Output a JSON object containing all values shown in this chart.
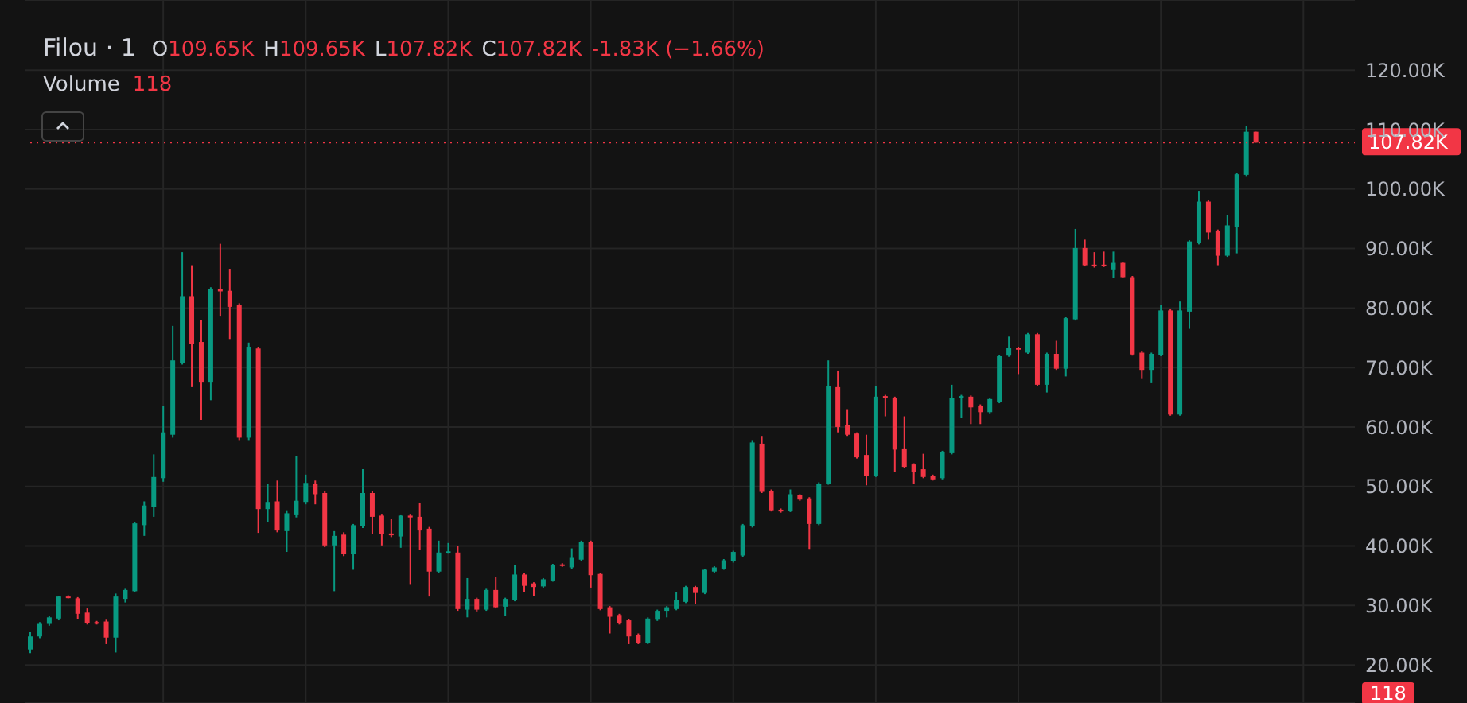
{
  "chart_data": {
    "type": "candlestick",
    "title": "Filou · 1",
    "annotations": [
      "O",
      "109.65K",
      "H",
      "109.65K",
      "L",
      "107.82K",
      "C",
      "107.82K",
      "-1.83K (−1.66%)",
      "Volume",
      "118",
      "118"
    ],
    "categories": [
      null,
      null,
      null,
      null,
      null,
      null,
      null,
      null,
      null,
      null,
      null,
      null,
      null,
      null,
      null,
      null,
      null,
      null,
      null,
      null,
      null,
      null,
      null,
      null,
      null,
      null,
      null,
      null,
      null,
      null,
      null,
      null,
      null,
      null,
      null,
      null,
      null,
      null,
      null,
      null,
      null,
      null,
      null,
      null,
      null,
      null,
      null,
      null,
      null,
      null,
      null,
      null,
      null,
      null,
      null,
      null,
      null,
      null,
      null,
      null,
      null,
      null,
      null,
      null,
      null,
      null,
      null,
      null,
      null,
      null,
      null,
      null,
      null,
      null,
      null,
      null,
      null,
      null,
      null,
      null,
      null,
      null,
      null,
      null,
      null,
      null,
      null,
      null,
      null,
      null,
      null,
      null,
      null,
      null,
      null,
      null,
      null,
      null,
      null,
      null,
      null,
      null,
      null,
      null,
      null,
      null,
      null,
      null,
      null,
      null,
      null,
      null,
      null,
      null,
      null,
      null,
      null,
      null,
      null,
      null,
      null,
      null,
      null,
      null,
      null,
      null,
      null,
      null,
      null,
      null,
      null,
      null,
      null,
      null,
      null,
      null,
      null,
      null,
      null,
      null
    ],
    "colors": [
      "#089981",
      "#089981",
      "#089981",
      "#089981",
      "#f23645",
      "#f23645",
      "#f23645",
      "#f23645",
      "#f23645",
      "#089981",
      "#089981",
      "#089981",
      "#089981",
      "#089981",
      "#089981",
      "#089981",
      "#089981",
      "#f23645",
      "#f23645",
      "#089981",
      "#f23645",
      "#f23645",
      "#f23645",
      "#089981",
      "#f23645",
      "#089981",
      "#f23645",
      "#089981",
      "#089981",
      "#089981",
      "#f23645",
      "#f23645",
      "#089981",
      "#f23645",
      "#089981",
      "#089981",
      "#f23645",
      "#f23645",
      "#f23645",
      "#089981",
      "#f23645",
      "#f23645",
      "#f23645",
      "#089981",
      "#089981",
      "#f23645",
      "#089981",
      "#f23645",
      "#089981",
      "#f23645",
      "#089981",
      "#089981",
      "#f23645",
      "#f23645",
      "#089981",
      "#089981",
      "#f23645",
      "#089981",
      "#089981",
      "#f23645",
      "#f23645",
      "#f23645",
      "#f23645",
      "#f23645",
      "#f23645",
      "#089981",
      "#089981",
      "#089981",
      "#089981",
      "#089981",
      "#f23645",
      "#089981",
      "#089981",
      "#089981",
      "#089981",
      "#089981",
      "#089981",
      "#f23645",
      "#f23645",
      "#f23645",
      "#089981",
      "#f23645",
      "#f23645",
      "#089981",
      "#089981",
      "#f23645",
      "#f23645",
      "#f23645",
      "#f23645",
      "#089981",
      "#f23645",
      "#f23645",
      "#f23645",
      "#f23645",
      "#f23645",
      "#f23645",
      "#089981",
      "#089981",
      "#089981",
      "#f23645",
      "#f23645",
      "#089981",
      "#089981",
      "#089981",
      "#f23645",
      "#089981",
      "#f23645",
      "#089981",
      "#f23645",
      "#089981",
      "#089981",
      "#f23645",
      "#f23645",
      "#f23645",
      "#089981",
      "#f23645",
      "#f23645",
      "#f23645",
      "#089981",
      "#089981",
      "#f23645",
      "#089981",
      "#089981",
      "#089981",
      "#f23645",
      "#f23645",
      "#089981",
      "#089981",
      "#089981",
      "#f23645",
      null,
      null,
      null,
      null,
      null,
      null,
      null,
      null,
      null,
      null
    ],
    "ohlc": [
      [
        22600,
        25500,
        22000,
        24800
      ],
      [
        24800,
        27200,
        24500,
        26900
      ],
      [
        26900,
        28300,
        26600,
        28000
      ],
      [
        27800,
        31600,
        27500,
        31500
      ],
      [
        31500,
        31700,
        31200,
        31300
      ],
      [
        31200,
        31400,
        27700,
        28600
      ],
      [
        28800,
        29500,
        26800,
        27000
      ],
      [
        27200,
        27400,
        26800,
        27000
      ],
      [
        27300,
        27600,
        23500,
        24600
      ],
      [
        24600,
        32000,
        22100,
        31500
      ],
      [
        31100,
        32800,
        30500,
        32600
      ],
      [
        32400,
        44000,
        32200,
        43800
      ],
      [
        43500,
        47500,
        41700,
        46800
      ],
      [
        46500,
        55400,
        44900,
        51600
      ],
      [
        51400,
        63600,
        50800,
        59100
      ],
      [
        58700,
        77000,
        58200,
        71200
      ],
      [
        70800,
        89400,
        70500,
        82000
      ],
      [
        82000,
        87200,
        66700,
        74000
      ],
      [
        74300,
        78000,
        61200,
        67600
      ],
      [
        67600,
        83500,
        64500,
        83200
      ],
      [
        83200,
        90800,
        78700,
        82800
      ],
      [
        82900,
        86600,
        74800,
        80200
      ],
      [
        80500,
        80800,
        57800,
        58200
      ],
      [
        58200,
        74200,
        57800,
        73500
      ],
      [
        73200,
        73500,
        42200,
        46200
      ],
      [
        46200,
        50500,
        44000,
        47400
      ],
      [
        47500,
        51000,
        42300,
        42600
      ],
      [
        42500,
        46000,
        39000,
        45500
      ],
      [
        45300,
        55100,
        44800,
        47600
      ],
      [
        47400,
        52000,
        47000,
        50600
      ],
      [
        50500,
        51000,
        47000,
        48700
      ],
      [
        48900,
        49200,
        39800,
        40100
      ],
      [
        40100,
        42500,
        32400,
        41700
      ],
      [
        41900,
        42300,
        38300,
        38600
      ],
      [
        38600,
        43700,
        36000,
        43500
      ],
      [
        43300,
        52900,
        43000,
        48900
      ],
      [
        48900,
        49200,
        42000,
        44900
      ],
      [
        45100,
        45400,
        40100,
        42000
      ],
      [
        42100,
        44600,
        41500,
        41800
      ],
      [
        41600,
        45300,
        39700,
        45100
      ],
      [
        45100,
        45400,
        33600,
        44800
      ],
      [
        44900,
        47300,
        39300,
        42600
      ],
      [
        42900,
        43200,
        31500,
        35700
      ],
      [
        35700,
        40900,
        35400,
        38900
      ],
      [
        38900,
        40500,
        38700,
        39100
      ],
      [
        38900,
        40000,
        29100,
        29400
      ],
      [
        29300,
        34600,
        28000,
        31100
      ],
      [
        31100,
        31300,
        29000,
        29300
      ],
      [
        29300,
        32800,
        29100,
        32600
      ],
      [
        32600,
        34800,
        29500,
        29700
      ],
      [
        29800,
        31300,
        28200,
        31100
      ],
      [
        30900,
        36800,
        30700,
        35200
      ],
      [
        35200,
        35400,
        32200,
        33300
      ],
      [
        33700,
        33900,
        31600,
        33100
      ],
      [
        33200,
        34600,
        33000,
        34400
      ],
      [
        34200,
        37000,
        34000,
        36800
      ],
      [
        36900,
        37100,
        36500,
        36700
      ],
      [
        36400,
        39600,
        36200,
        38000
      ],
      [
        37700,
        40900,
        37500,
        40700
      ],
      [
        40700,
        40900,
        33000,
        35100
      ],
      [
        35300,
        35500,
        29200,
        29400
      ],
      [
        29700,
        29900,
        25300,
        28100
      ],
      [
        28400,
        28600,
        26800,
        27000
      ],
      [
        27500,
        27700,
        23500,
        24800
      ],
      [
        25100,
        25300,
        23500,
        23700
      ],
      [
        23700,
        28000,
        23500,
        27800
      ],
      [
        27600,
        29300,
        27400,
        29100
      ],
      [
        29100,
        29900,
        28000,
        29700
      ],
      [
        29400,
        32200,
        29200,
        30900
      ],
      [
        30600,
        33300,
        30400,
        33100
      ],
      [
        33100,
        33300,
        30300,
        32100
      ],
      [
        32100,
        36200,
        31900,
        36000
      ],
      [
        35700,
        36600,
        35500,
        36400
      ],
      [
        36200,
        37800,
        36000,
        37600
      ],
      [
        37400,
        39200,
        37200,
        39000
      ],
      [
        38400,
        43700,
        38200,
        43500
      ],
      [
        43300,
        57800,
        43100,
        57400
      ],
      [
        57200,
        58500,
        48900,
        49100
      ],
      [
        49300,
        49500,
        45800,
        46000
      ],
      [
        46100,
        46300,
        45600,
        45800
      ],
      [
        45900,
        49500,
        45700,
        48700
      ],
      [
        48500,
        48700,
        47600,
        47800
      ],
      [
        48000,
        48200,
        39500,
        43700
      ],
      [
        43700,
        50700,
        43500,
        50500
      ],
      [
        50500,
        71200,
        50300,
        66900
      ],
      [
        66700,
        69500,
        59100,
        60000
      ],
      [
        60300,
        63000,
        58500,
        58700
      ],
      [
        58900,
        59100,
        54700,
        54900
      ],
      [
        55300,
        58700,
        50200,
        51800
      ],
      [
        51800,
        66900,
        51600,
        65100
      ],
      [
        65200,
        65400,
        61800,
        64900
      ],
      [
        64900,
        65100,
        52400,
        56200
      ],
      [
        56400,
        61800,
        53100,
        53300
      ],
      [
        53700,
        53900,
        50500,
        52400
      ],
      [
        52900,
        55500,
        51400,
        51600
      ],
      [
        51800,
        52000,
        51000,
        51200
      ],
      [
        51400,
        56000,
        51200,
        55800
      ],
      [
        55600,
        67100,
        55400,
        64900
      ],
      [
        64900,
        65400,
        61500,
        65200
      ],
      [
        65100,
        65300,
        60500,
        63300
      ],
      [
        63600,
        63800,
        60500,
        62500
      ],
      [
        62500,
        64900,
        62300,
        64700
      ],
      [
        64200,
        72100,
        64000,
        71900
      ],
      [
        72000,
        75200,
        71800,
        73300
      ],
      [
        73300,
        73500,
        68900,
        73000
      ],
      [
        72500,
        75800,
        72300,
        75600
      ],
      [
        75600,
        75800,
        66900,
        67100
      ],
      [
        67100,
        72500,
        65800,
        72300
      ],
      [
        72300,
        74500,
        69600,
        69800
      ],
      [
        69800,
        78500,
        68500,
        78300
      ],
      [
        78100,
        93300,
        77900,
        90100
      ],
      [
        90100,
        91500,
        87000,
        87200
      ],
      [
        87300,
        89400,
        86800,
        87000
      ],
      [
        87300,
        89500,
        86900,
        87100
      ],
      [
        86500,
        89500,
        85000,
        87600
      ],
      [
        87600,
        87800,
        85000,
        85200
      ],
      [
        85200,
        85400,
        72000,
        72200
      ],
      [
        72500,
        72700,
        68200,
        69600
      ],
      [
        69600,
        72500,
        67500,
        72300
      ],
      [
        72100,
        80500,
        71900,
        79600
      ],
      [
        79600,
        79800,
        61900,
        62100
      ],
      [
        62100,
        81100,
        61900,
        79600
      ],
      [
        79400,
        91400,
        76500,
        91200
      ],
      [
        90900,
        99700,
        90700,
        97900
      ],
      [
        97900,
        98100,
        91500,
        92700
      ],
      [
        93000,
        93200,
        87200,
        88800
      ],
      [
        88800,
        95700,
        88600,
        93900
      ],
      [
        93600,
        102700,
        89200,
        102500
      ],
      [
        102400,
        110600,
        102200,
        109650
      ],
      [
        109650,
        109650,
        107820,
        107820
      ],
      null,
      null,
      null,
      null,
      null,
      null,
      null,
      null,
      null,
      null
    ],
    "ylim": [
      13600,
      131800
    ],
    "yticks": [
      {
        "value": 20000,
        "label": "20.00K"
      },
      {
        "value": 30000,
        "label": "30.00K"
      },
      {
        "value": 40000,
        "label": "40.00K"
      },
      {
        "value": 50000,
        "label": "50.00K"
      },
      {
        "value": 60000,
        "label": "60.00K"
      },
      {
        "value": 70000,
        "label": "70.00K"
      },
      {
        "value": 80000,
        "label": "80.00K"
      },
      {
        "value": 90000,
        "label": "90.00K"
      },
      {
        "value": 100000,
        "label": "100.00K"
      },
      {
        "value": 110000,
        "label": "110.00K"
      },
      {
        "value": 120000,
        "label": "120.00K"
      }
    ],
    "ref_lines": [
      {
        "axis": "y",
        "value": 107820,
        "label": "107.82K",
        "color": "#f23645",
        "line_style": "dotted"
      }
    ],
    "grid": true,
    "tick_labels": "y"
  }
}
